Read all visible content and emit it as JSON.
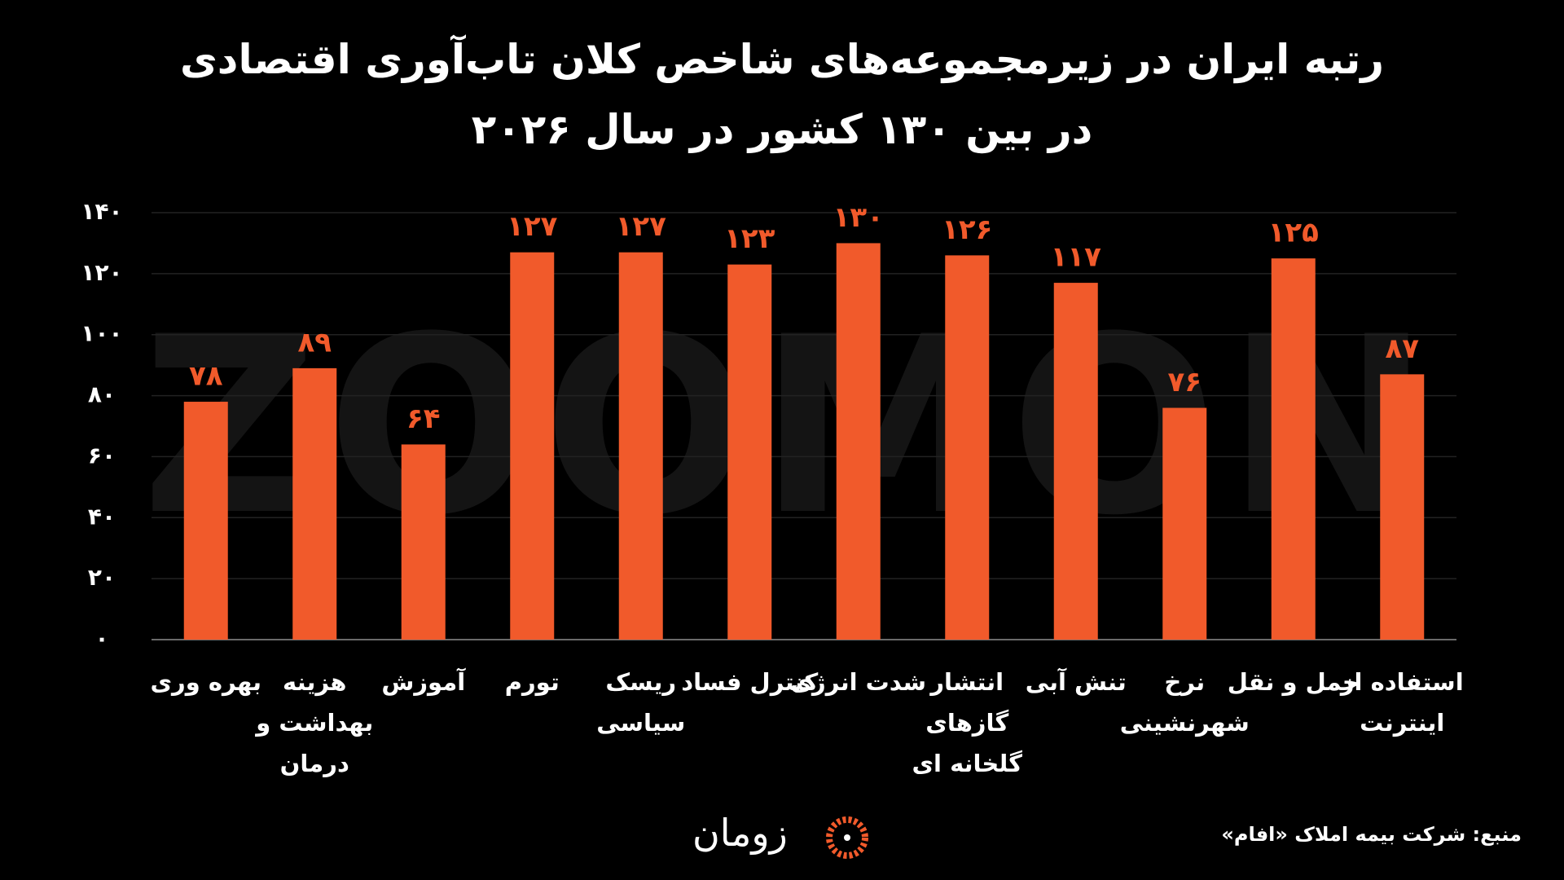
{
  "chart_data": {
    "type": "bar",
    "title": "رتبه ایران در زیرمجموعه‌های شاخص کلان تاب‌آوری اقتصادی در بین ۱۳۰ کشور در سال ۲۰۲۶",
    "categories": [
      "بهره وری",
      "هزینه بهداشت و درمان",
      "آموزش",
      "تورم",
      "ریسک سیاسی",
      "کنترل فساد",
      "شدت انرژی",
      "انتشار گازهای گلخانه ای",
      "تنش آبی",
      "نرخ شهرنشینی",
      "حمل و نقل",
      "استفاده از اینترنت"
    ],
    "values": [
      78,
      89,
      64,
      127,
      127,
      123,
      130,
      126,
      117,
      76,
      125,
      87
    ],
    "value_labels": [
      "۷۸",
      "۸۹",
      "۶۴",
      "۱۲۷",
      "۱۲۷",
      "۱۲۳",
      "۱۳۰",
      "۱۲۶",
      "۱۱۷",
      "۷۶",
      "۱۲۵",
      "۸۷"
    ],
    "color": "#f15a2b",
    "ylim": [
      0,
      140
    ],
    "yticks": [
      {
        "value": 0,
        "label": "۰"
      },
      {
        "value": 20,
        "label": "۲۰"
      },
      {
        "value": 40,
        "label": "۴۰"
      },
      {
        "value": 60,
        "label": "۶۰"
      },
      {
        "value": 80,
        "label": "۸۰"
      },
      {
        "value": 100,
        "label": "۱۰۰"
      },
      {
        "value": 120,
        "label": "۱۲۰"
      },
      {
        "value": 140,
        "label": "۱۴۰"
      }
    ],
    "grid": true,
    "watermark": "ZOOMON",
    "logo": "زومان",
    "source": "منبع: شرکت بیمه املاک «افام»"
  }
}
